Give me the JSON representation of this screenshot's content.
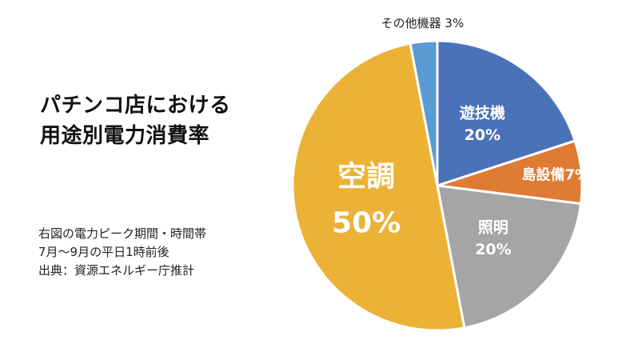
{
  "title_lines": [
    "パチンコ店における",
    "用途別電力消費率"
  ],
  "notes": [
    "右図の電力ピーク期間・時間帯",
    "7月〜9月の平日1時前後",
    "出典：資源エネルギー庁推計"
  ],
  "chart_data": {
    "type": "pie",
    "start_angle_deg": 0,
    "direction": "clockwise",
    "slices": [
      {
        "label": "遊技機",
        "value": 20,
        "value_label": "20%",
        "color": "#4a72b8"
      },
      {
        "label": "島設備",
        "value": 7,
        "value_label": "7%",
        "color": "#e07b34"
      },
      {
        "label": "照明",
        "value": 20,
        "value_label": "20%",
        "color": "#a5a5a5"
      },
      {
        "label": "空調",
        "value": 50,
        "value_label": "50%",
        "color": "#ecb236"
      },
      {
        "label": "その他機器",
        "value": 3,
        "value_label": "3%",
        "color": "#5b9bd5"
      }
    ]
  }
}
